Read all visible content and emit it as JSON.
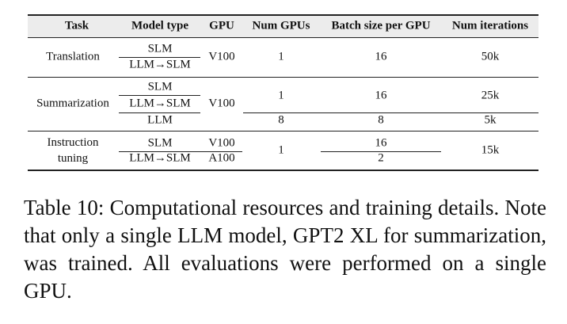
{
  "table": {
    "header": [
      "Task",
      "Model type",
      "GPU",
      "Num GPUs",
      "Batch size per GPU",
      "Num iterations"
    ],
    "translation": {
      "task": "Translation",
      "models": [
        "SLM",
        "LLM→SLM"
      ],
      "gpu": "V100",
      "num_gpus": 1,
      "batch": 16,
      "iterations": "50k"
    },
    "summarization": {
      "task": "Summarization",
      "models": [
        "SLM",
        "LLM→SLM",
        "LLM"
      ],
      "gpu": "V100",
      "num_gpus": [
        1,
        8
      ],
      "batch": [
        16,
        8
      ],
      "iterations": [
        "25k",
        "5k"
      ]
    },
    "instruction": {
      "task": "Instruction tuning",
      "models": [
        "SLM",
        "LLM→SLM"
      ],
      "gpu": [
        "V100",
        "A100"
      ],
      "num_gpus": 1,
      "batch": [
        16,
        2
      ],
      "iterations": "15k"
    }
  },
  "caption": "Table 10: Computational resources and training details. Note that only a single LLM model, GPT2 XL for summarization, was trained. All evaluations were performed on a single GPU."
}
